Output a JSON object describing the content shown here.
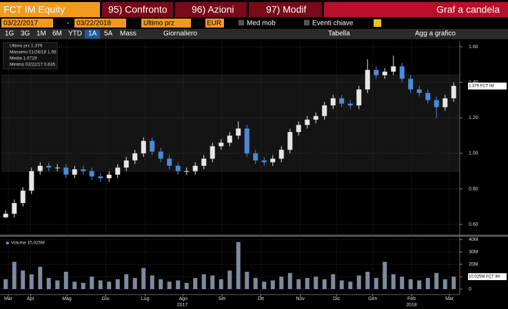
{
  "toolbar": {
    "security": "FCT IM Equity",
    "buttons": [
      "95) Confronto",
      "96) Azioni",
      "97) Modif"
    ],
    "chart_type": "Graf a candela",
    "start_date": "03/22/2017",
    "date_sep": "-",
    "end_date": "03/22/2018",
    "field": "Ultimo prz",
    "currency": "EUR",
    "moving_avg": "Med mob",
    "key_events": "Eventi chiave",
    "periods": [
      "1G",
      "3G",
      "1M",
      "6M",
      "YTD",
      "1A",
      "5A",
      "Mass"
    ],
    "active_period": "1A",
    "frequency": "Giornaliero",
    "table": "Tabella",
    "add_to_chart": "Agg a grafico"
  },
  "chart_data": {
    "type": "candlestick",
    "up_color": "#e6e6e6",
    "down_color": "#4a8ad8",
    "volume_color": "#7d8aa0",
    "legend": [
      "Ultimo prz 1.379",
      "Massimo 01/26/18 1.55",
      "Media 1.0719",
      "Minimo 03/22/17 0.635"
    ],
    "volume_legend": "Volume 10.025M",
    "last_price": {
      "value": 1.379,
      "label": "1.379 FCT IM"
    },
    "last_volume": {
      "value": 10025000,
      "label": "10.025M FCT IM"
    },
    "x": [
      0,
      1,
      2,
      3,
      4,
      5,
      6,
      7,
      8,
      9,
      10,
      11,
      12,
      13,
      14,
      15,
      16,
      17,
      18,
      19,
      20,
      21,
      22,
      23,
      24,
      25,
      26,
      27,
      28,
      29,
      30,
      31,
      32,
      33,
      34,
      35,
      36,
      37,
      38,
      39,
      40,
      41,
      42,
      43,
      44,
      45,
      46,
      47,
      48,
      49,
      50,
      51,
      52
    ],
    "open": [
      0.64,
      0.66,
      0.72,
      0.79,
      0.9,
      0.93,
      0.92,
      0.92,
      0.88,
      0.91,
      0.9,
      0.87,
      0.86,
      0.88,
      0.92,
      0.96,
      1.0,
      1.07,
      1.01,
      0.97,
      0.93,
      0.9,
      0.9,
      0.93,
      0.97,
      1.04,
      1.06,
      1.1,
      1.14,
      1.0,
      0.96,
      0.95,
      0.97,
      1.02,
      1.12,
      1.16,
      1.19,
      1.21,
      1.27,
      1.31,
      1.28,
      1.27,
      1.36,
      1.47,
      1.44,
      1.46,
      1.49,
      1.42,
      1.36,
      1.34,
      1.3,
      1.26,
      1.31
    ],
    "high": [
      0.68,
      0.74,
      0.81,
      0.92,
      0.95,
      0.95,
      0.94,
      0.94,
      0.93,
      0.93,
      0.92,
      0.89,
      0.9,
      0.94,
      0.98,
      1.02,
      1.09,
      1.09,
      1.03,
      0.99,
      0.95,
      0.92,
      0.95,
      0.99,
      1.06,
      1.08,
      1.12,
      1.18,
      1.16,
      1.02,
      0.98,
      0.99,
      1.04,
      1.14,
      1.18,
      1.21,
      1.23,
      1.29,
      1.33,
      1.33,
      1.3,
      1.38,
      1.53,
      1.49,
      1.48,
      1.55,
      1.51,
      1.44,
      1.38,
      1.36,
      1.32,
      1.33,
      1.4
    ],
    "low": [
      0.635,
      0.64,
      0.7,
      0.77,
      0.88,
      0.9,
      0.9,
      0.86,
      0.86,
      0.88,
      0.85,
      0.84,
      0.84,
      0.86,
      0.9,
      0.94,
      0.98,
      0.99,
      0.95,
      0.91,
      0.88,
      0.88,
      0.88,
      0.91,
      0.95,
      1.02,
      1.04,
      1.08,
      0.98,
      0.94,
      0.93,
      0.93,
      0.95,
      1.0,
      1.1,
      1.14,
      1.17,
      1.19,
      1.25,
      1.26,
      1.25,
      1.25,
      1.34,
      1.42,
      1.42,
      1.44,
      1.4,
      1.34,
      1.32,
      1.28,
      1.2,
      1.24,
      1.29
    ],
    "close": [
      0.66,
      0.72,
      0.79,
      0.9,
      0.93,
      0.92,
      0.92,
      0.88,
      0.91,
      0.9,
      0.87,
      0.86,
      0.88,
      0.92,
      0.96,
      1.0,
      1.07,
      1.01,
      0.97,
      0.93,
      0.9,
      0.9,
      0.93,
      0.97,
      1.04,
      1.06,
      1.1,
      1.14,
      1.0,
      0.96,
      0.95,
      0.97,
      1.02,
      1.12,
      1.16,
      1.19,
      1.21,
      1.27,
      1.31,
      1.28,
      1.27,
      1.36,
      1.47,
      1.44,
      1.46,
      1.49,
      1.42,
      1.36,
      1.34,
      1.3,
      1.26,
      1.31,
      1.38
    ],
    "volume": [
      8000000,
      22000000,
      15000000,
      12000000,
      18000000,
      9000000,
      7000000,
      14000000,
      6000000,
      5000000,
      10000000,
      7000000,
      6000000,
      8000000,
      12000000,
      9000000,
      17000000,
      11000000,
      8000000,
      6000000,
      7000000,
      5000000,
      9000000,
      12000000,
      11000000,
      8000000,
      15000000,
      38000000,
      14000000,
      9000000,
      6000000,
      7000000,
      10000000,
      13000000,
      8000000,
      9000000,
      10000000,
      8000000,
      12000000,
      7000000,
      6000000,
      11000000,
      14000000,
      9000000,
      22000000,
      12000000,
      10000000,
      8000000,
      7000000,
      9000000,
      13000000,
      8000000,
      10025000
    ],
    "xlim": [
      -0.5,
      52.7
    ],
    "xticks": [
      {
        "value": 0.3,
        "label": "Mar"
      },
      {
        "value": 2.9,
        "label": "Apr"
      },
      {
        "value": 7.1,
        "label": "Mag"
      },
      {
        "value": 11.6,
        "label": "Giu"
      },
      {
        "value": 16.2,
        "label": "Lug"
      },
      {
        "value": 20.6,
        "label": "Ago"
      },
      {
        "value": 25.1,
        "label": "Set"
      },
      {
        "value": 29.6,
        "label": "Ott"
      },
      {
        "value": 34.2,
        "label": "Nov"
      },
      {
        "value": 38.4,
        "label": "Dic"
      },
      {
        "value": 42.6,
        "label": "Gen"
      },
      {
        "value": 47.1,
        "label": "Feb"
      },
      {
        "value": 51.5,
        "label": "Mar"
      }
    ],
    "years": [
      {
        "value": 20.5,
        "label": "2017"
      },
      {
        "value": 47.1,
        "label": "2018"
      }
    ],
    "ylim": [
      0.546,
      1.631
    ],
    "yticks": [
      {
        "value": 0.6,
        "label": "0.60"
      },
      {
        "value": 0.8,
        "label": "0.80"
      },
      {
        "value": 1.0,
        "label": "1.00"
      },
      {
        "value": 1.2,
        "label": "1.20"
      },
      {
        "value": 1.4,
        "label": "1.40"
      },
      {
        "value": 1.6,
        "label": "1.60"
      }
    ],
    "y2lim": [
      -4400000,
      41700000
    ],
    "y2ticks": [
      {
        "value": 0,
        "label": "0"
      },
      {
        "value": 10000000,
        "label": "10M"
      },
      {
        "value": 20000000,
        "label": "20M"
      },
      {
        "value": 30000000,
        "label": "30M"
      },
      {
        "value": 40000000,
        "label": "40M"
      }
    ],
    "grid": true
  }
}
